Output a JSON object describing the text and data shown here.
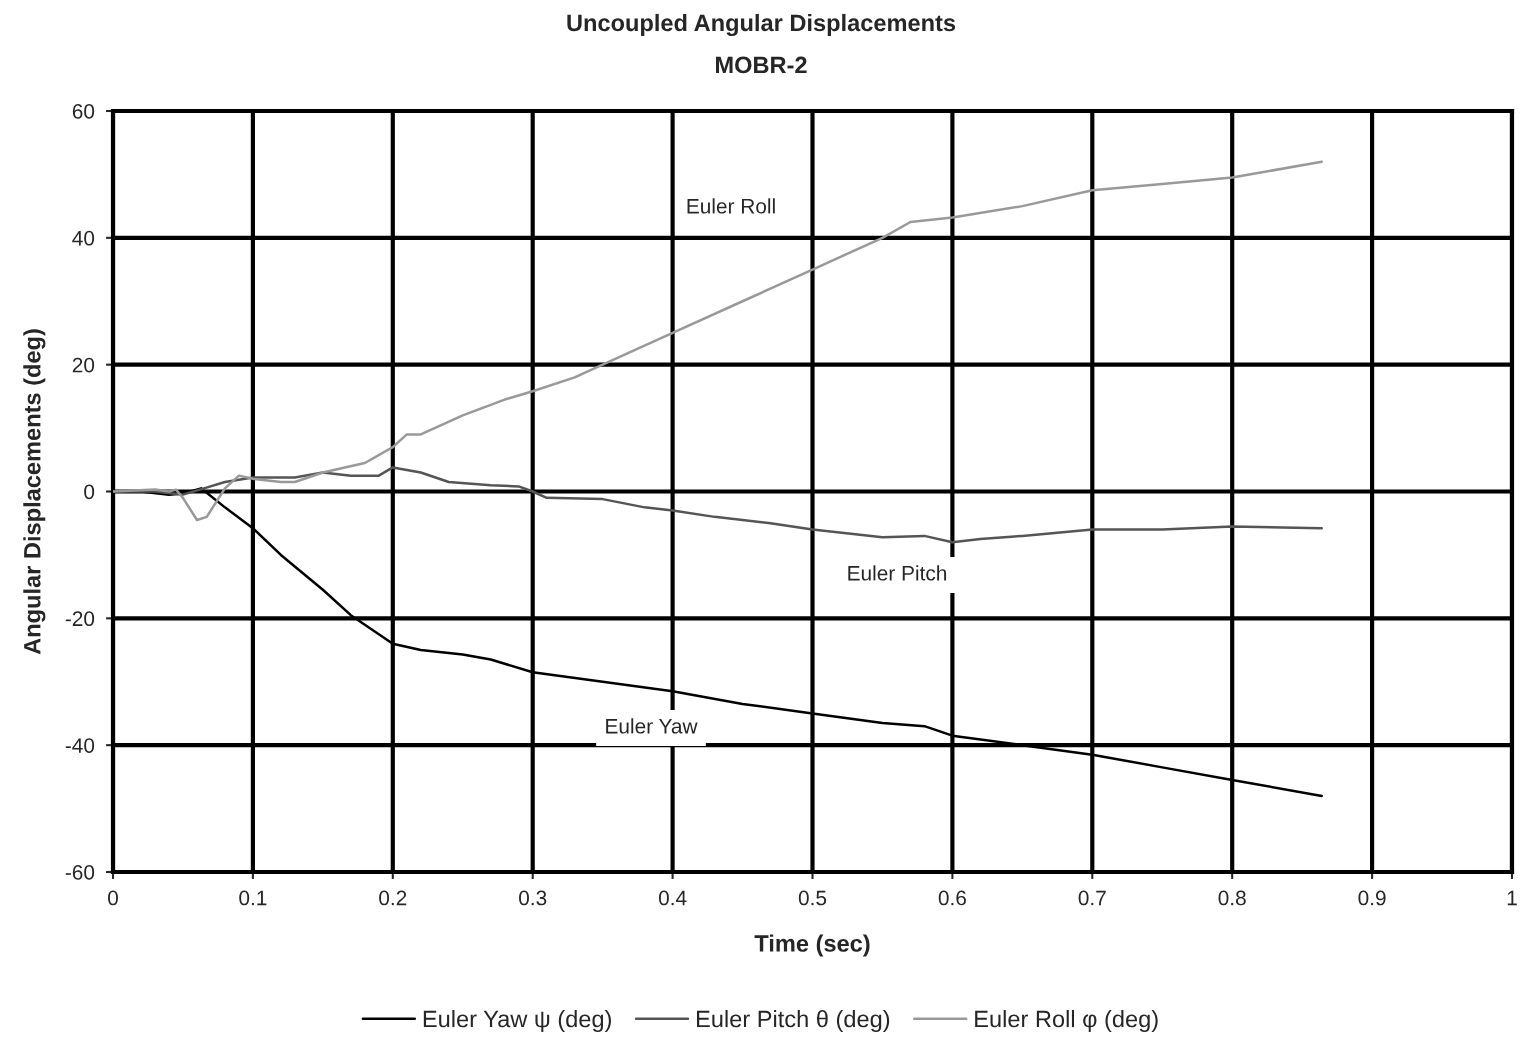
{
  "chart_data": {
    "type": "line",
    "title": "Uncoupled Angular Displacements",
    "subtitle": "MOBR-2",
    "xlabel": "Time (sec)",
    "ylabel": "Angular Displacements (deg)",
    "xlim": [
      0,
      1
    ],
    "xticks": [
      0,
      0.1,
      0.2,
      0.3,
      0.4,
      0.5,
      0.6,
      0.7,
      0.8,
      0.9,
      1
    ],
    "ylim": [
      -60,
      60
    ],
    "yticks": [
      -60,
      -40,
      -20,
      0,
      20,
      40,
      60
    ],
    "grid": true,
    "legend": "bottom",
    "marker": "none",
    "line_style": "solid",
    "series": [
      {
        "name": "Euler Yaw ψ (deg)",
        "color": "#000000",
        "x": [
          0,
          0.02,
          0.04,
          0.05,
          0.063,
          0.08,
          0.1,
          0.12,
          0.15,
          0.17,
          0.2,
          0.22,
          0.25,
          0.27,
          0.3,
          0.35,
          0.4,
          0.45,
          0.5,
          0.55,
          0.58,
          0.6,
          0.65,
          0.7,
          0.75,
          0.8,
          0.864
        ],
        "values": [
          0,
          0,
          -0.5,
          -0.3,
          0.5,
          -2.5,
          -5.8,
          -10,
          -15.5,
          -19.5,
          -24,
          -25,
          -25.7,
          -26.5,
          -28.5,
          -30,
          -31.5,
          -33.5,
          -35,
          -36.5,
          -37,
          -38.5,
          -40,
          -41.5,
          -43.5,
          -45.5,
          -48
        ]
      },
      {
        "name": "Euler Pitch θ (deg)",
        "color": "#555555",
        "x": [
          0,
          0.03,
          0.05,
          0.065,
          0.08,
          0.1,
          0.13,
          0.15,
          0.17,
          0.19,
          0.2,
          0.22,
          0.24,
          0.27,
          0.29,
          0.3,
          0.31,
          0.35,
          0.38,
          0.4,
          0.43,
          0.47,
          0.5,
          0.55,
          0.58,
          0.6,
          0.62,
          0.65,
          0.7,
          0.75,
          0.8,
          0.864
        ],
        "values": [
          0,
          0,
          -0.5,
          0.5,
          1.5,
          2.2,
          2.2,
          3,
          2.5,
          2.5,
          3.8,
          3,
          1.5,
          1,
          0.8,
          0,
          -1,
          -1.2,
          -2.5,
          -3,
          -4,
          -5,
          -6,
          -7.2,
          -7,
          -8,
          -7.5,
          -7,
          -6,
          -6,
          -5.5,
          -5.8
        ]
      },
      {
        "name": "Euler Roll φ (deg)",
        "color": "#999999",
        "x": [
          0,
          0.03,
          0.04,
          0.045,
          0.05,
          0.06,
          0.067,
          0.08,
          0.09,
          0.1,
          0.12,
          0.13,
          0.15,
          0.18,
          0.2,
          0.21,
          0.22,
          0.25,
          0.28,
          0.3,
          0.33,
          0.35,
          0.4,
          0.45,
          0.5,
          0.55,
          0.57,
          0.6,
          0.65,
          0.7,
          0.75,
          0.8,
          0.864
        ],
        "values": [
          0,
          0.3,
          0,
          0.3,
          -1,
          -4.5,
          -4,
          0.5,
          2.5,
          2,
          1.5,
          1.5,
          3,
          4.5,
          7,
          9,
          9,
          12,
          14.5,
          15.8,
          18,
          20,
          25,
          30,
          35,
          40,
          42.5,
          43.2,
          45,
          47.5,
          48.5,
          49.5,
          52
        ]
      }
    ],
    "annotations": [
      "Euler Roll",
      "Euler Pitch",
      "Euler Yaw"
    ]
  }
}
